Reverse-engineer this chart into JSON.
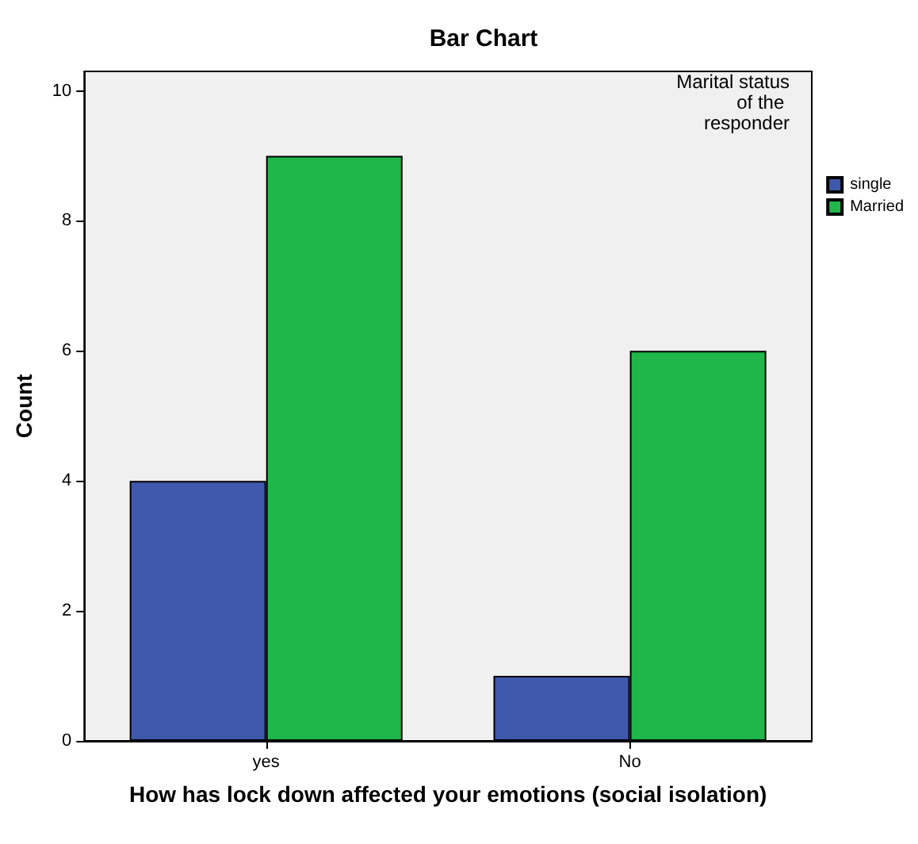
{
  "chart_data": {
    "type": "bar",
    "title": "Bar Chart",
    "xlabel": "How has lock down affected your emotions (social isolation)",
    "ylabel": "Count",
    "legend_title": "Marital status of the responder",
    "categories": [
      "yes",
      "No"
    ],
    "series": [
      {
        "name": "single",
        "color": "#3e58ac",
        "values": [
          4,
          1
        ]
      },
      {
        "name": "Married",
        "color": "#1fb74a",
        "values": [
          9,
          6
        ]
      }
    ],
    "ylim": [
      0,
      10.3
    ],
    "yticks": [
      0,
      2,
      4,
      6,
      8,
      10
    ],
    "grid": false,
    "legend": "right"
  }
}
